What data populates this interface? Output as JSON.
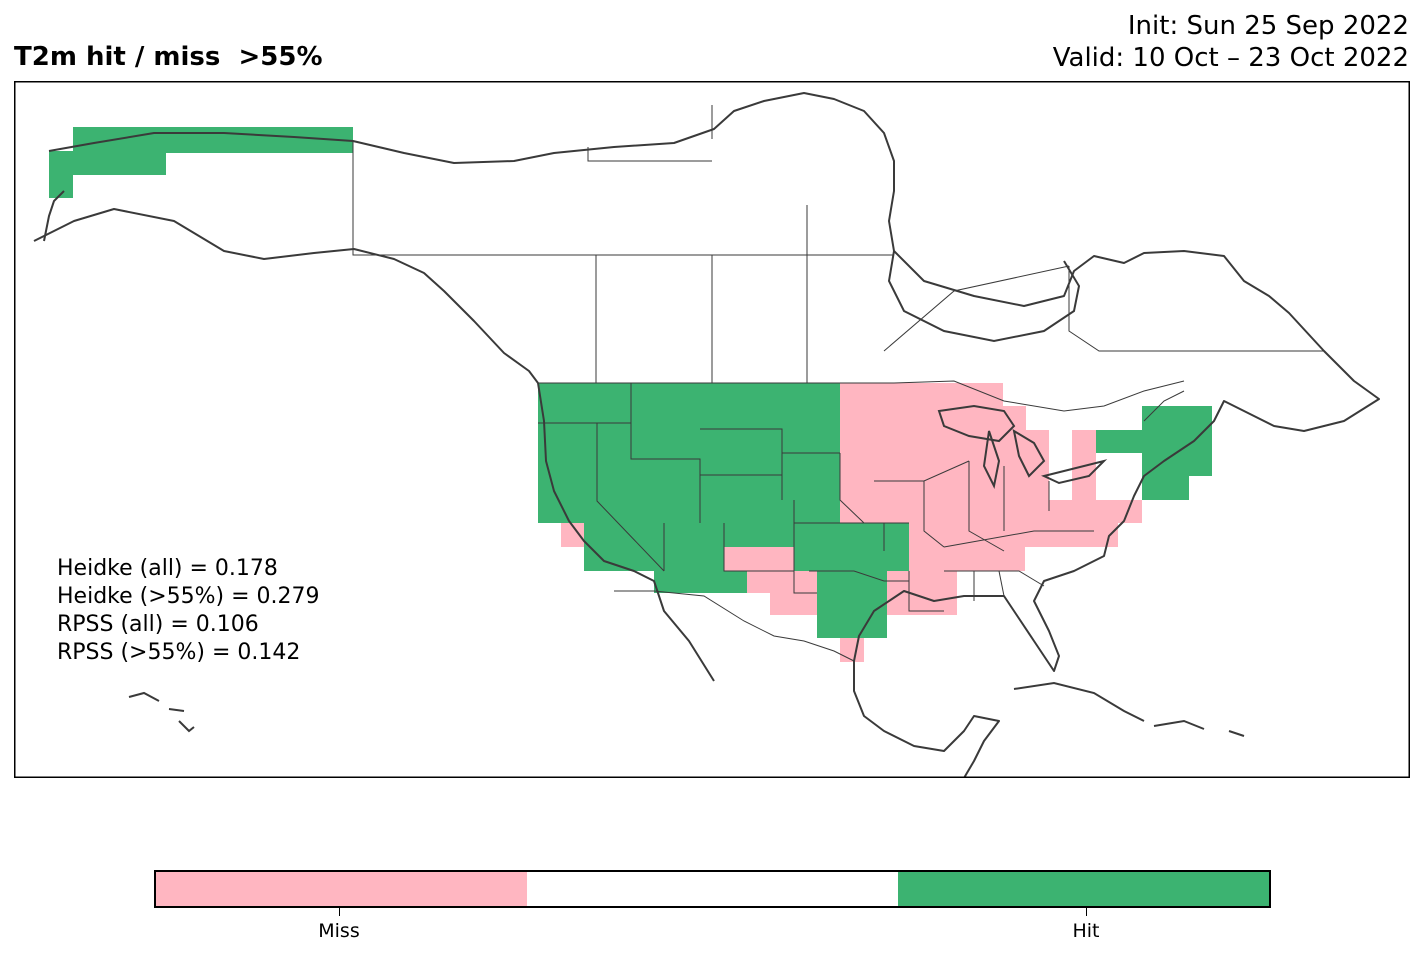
{
  "header": {
    "title": "T2m hit / miss  >55%",
    "init": "Init: Sun 25 Sep 2022",
    "valid": "Valid: 10 Oct – 23 Oct 2022"
  },
  "stats": [
    "Heidke (all) = 0.178",
    "Heidke (>55%) = 0.279",
    "RPSS (all) = 0.106",
    "RPSS (>55%) = 0.142"
  ],
  "legend": {
    "colors": {
      "miss": "#ffb6c1",
      "neutral": "#ffffff",
      "hit": "#3cb371"
    },
    "miss_label": "Miss",
    "hit_label": "Hit"
  }
}
